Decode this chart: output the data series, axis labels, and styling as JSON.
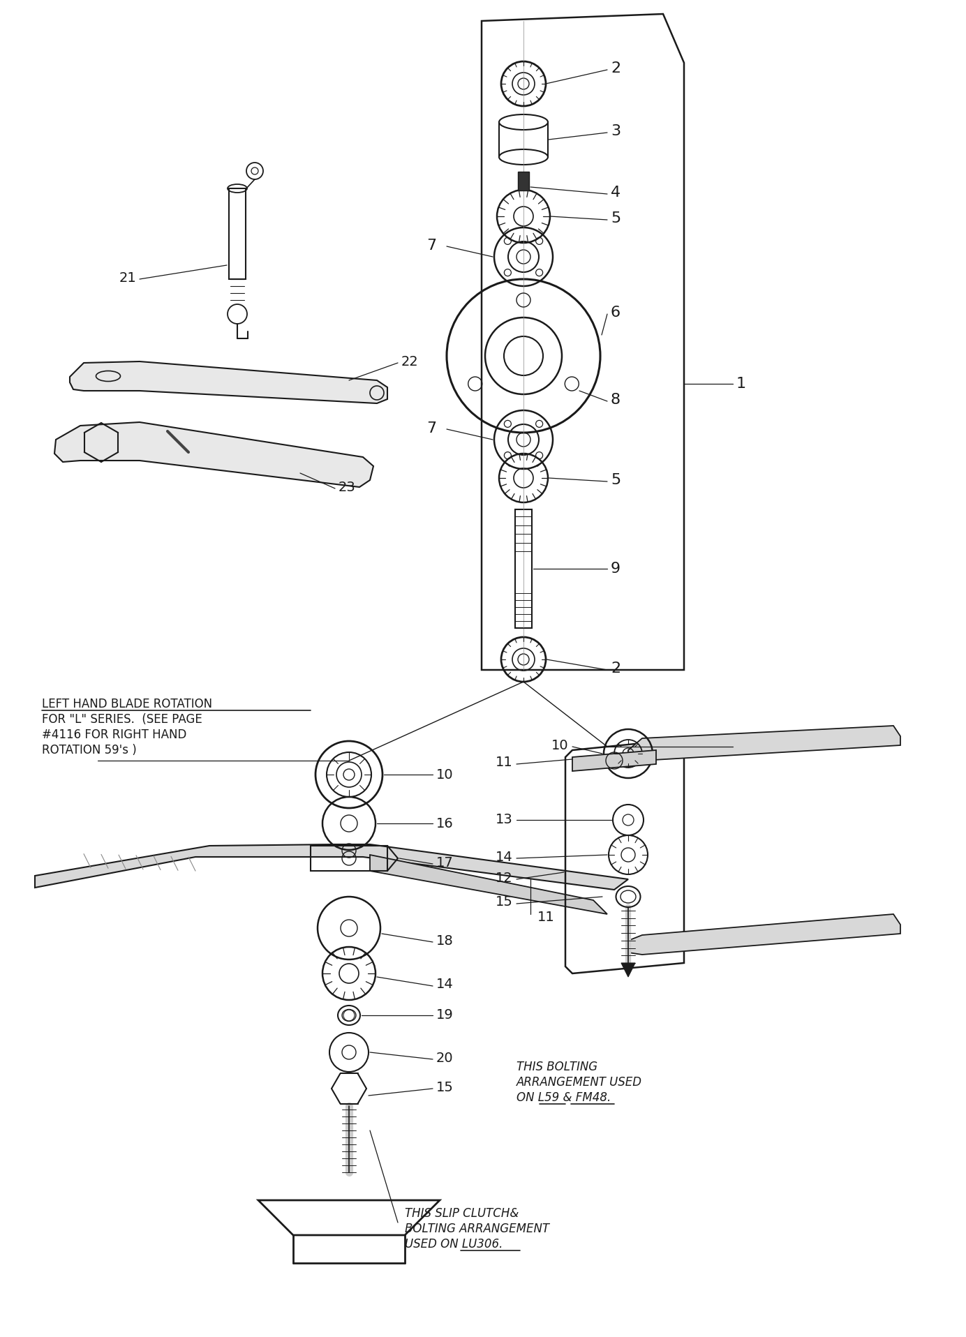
{
  "bg_color": "#ffffff",
  "line_color": "#1a1a1a",
  "text_color": "#1a1a1a",
  "figsize": [
    13.84,
    19.16
  ],
  "dpi": 100,
  "annotations": {
    "left_hand_text_line1": "LEFT HAND BLADE ROTATION",
    "left_hand_text_rest": "FOR \"L\" SERIES.  (SEE PAGE\n#4116 FOR RIGHT HAND\nROTATION 59's )",
    "bolting_text": "THIS BOLTING\nARRANGEMENT USED\nON L59 & FM48.",
    "slip_clutch_text": "THIS SLIP CLUTCH&\nBOLTING ARRANGEMENT\nUSED ON LU306."
  }
}
